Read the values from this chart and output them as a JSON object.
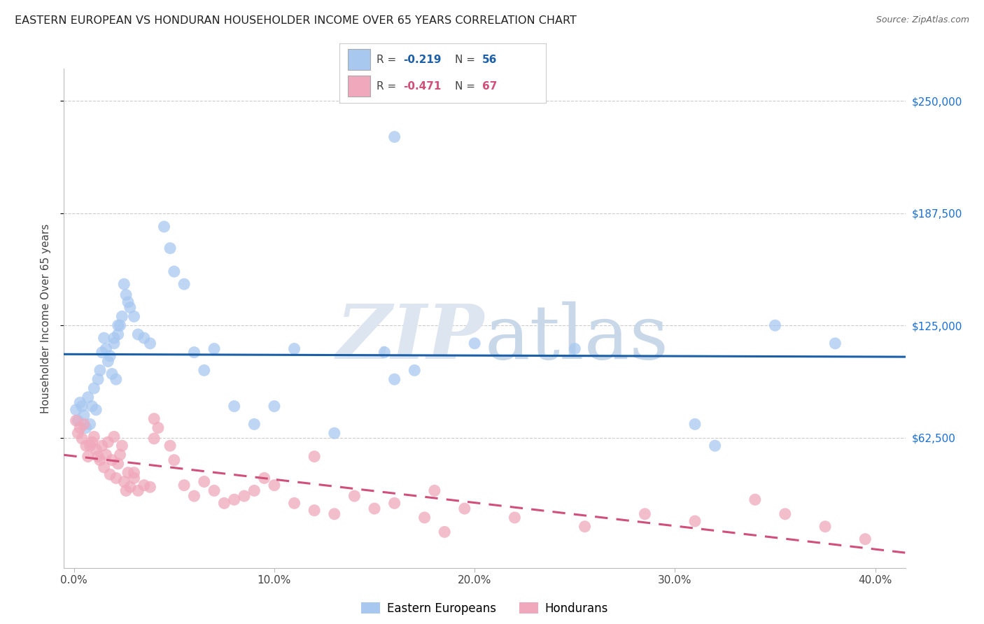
{
  "title": "EASTERN EUROPEAN VS HONDURAN HOUSEHOLDER INCOME OVER 65 YEARS CORRELATION CHART",
  "source": "Source: ZipAtlas.com",
  "ylabel": "Householder Income Over 65 years",
  "ytick_labels": [
    "$62,500",
    "$125,000",
    "$187,500",
    "$250,000"
  ],
  "ytick_vals": [
    62500,
    125000,
    187500,
    250000
  ],
  "xtick_labels": [
    "0.0%",
    "10.0%",
    "20.0%",
    "30.0%",
    "40.0%"
  ],
  "xtick_vals": [
    0.0,
    0.1,
    0.2,
    0.3,
    0.4
  ],
  "ylim": [
    -10000,
    268000
  ],
  "xlim": [
    -0.005,
    0.415
  ],
  "legend_R_blue": "-0.219",
  "legend_N_blue": "56",
  "legend_R_pink": "-0.471",
  "legend_N_pink": "67",
  "blue_color": "#a8c8f0",
  "pink_color": "#f0a8bc",
  "blue_line_color": "#1a5fa8",
  "pink_line_color": "#d0507a",
  "blue_x": [
    0.001,
    0.002,
    0.003,
    0.004,
    0.005,
    0.006,
    0.007,
    0.008,
    0.009,
    0.01,
    0.011,
    0.012,
    0.013,
    0.014,
    0.015,
    0.016,
    0.017,
    0.018,
    0.019,
    0.02,
    0.021,
    0.022,
    0.023,
    0.024,
    0.025,
    0.026,
    0.027,
    0.028,
    0.03,
    0.032,
    0.035,
    0.038,
    0.05,
    0.055,
    0.06,
    0.065,
    0.07,
    0.08,
    0.09,
    0.1,
    0.11,
    0.13,
    0.155,
    0.16,
    0.17,
    0.2,
    0.25,
    0.31,
    0.32,
    0.35,
    0.38,
    0.16,
    0.045,
    0.048,
    0.022,
    0.02
  ],
  "blue_y": [
    78000,
    72000,
    82000,
    80000,
    75000,
    68000,
    85000,
    70000,
    80000,
    90000,
    78000,
    95000,
    100000,
    110000,
    118000,
    112000,
    105000,
    108000,
    98000,
    115000,
    95000,
    120000,
    125000,
    130000,
    148000,
    142000,
    138000,
    135000,
    130000,
    120000,
    118000,
    115000,
    155000,
    148000,
    110000,
    100000,
    112000,
    80000,
    70000,
    80000,
    112000,
    65000,
    110000,
    230000,
    100000,
    115000,
    112000,
    70000,
    58000,
    125000,
    115000,
    95000,
    180000,
    168000,
    125000,
    118000
  ],
  "pink_x": [
    0.001,
    0.002,
    0.003,
    0.004,
    0.005,
    0.006,
    0.007,
    0.008,
    0.009,
    0.01,
    0.011,
    0.012,
    0.013,
    0.014,
    0.015,
    0.016,
    0.017,
    0.018,
    0.019,
    0.02,
    0.021,
    0.022,
    0.023,
    0.024,
    0.025,
    0.026,
    0.027,
    0.028,
    0.03,
    0.032,
    0.035,
    0.038,
    0.04,
    0.042,
    0.048,
    0.05,
    0.055,
    0.06,
    0.065,
    0.07,
    0.075,
    0.08,
    0.085,
    0.09,
    0.095,
    0.1,
    0.11,
    0.12,
    0.13,
    0.14,
    0.15,
    0.16,
    0.175,
    0.185,
    0.195,
    0.22,
    0.255,
    0.285,
    0.31,
    0.34,
    0.355,
    0.375,
    0.395,
    0.18,
    0.12,
    0.04,
    0.03
  ],
  "pink_y": [
    72000,
    65000,
    68000,
    62000,
    70000,
    58000,
    52000,
    58000,
    60000,
    63000,
    56000,
    52000,
    50000,
    58000,
    46000,
    53000,
    60000,
    42000,
    50000,
    63000,
    40000,
    48000,
    53000,
    58000,
    38000,
    33000,
    43000,
    35000,
    40000,
    33000,
    36000,
    35000,
    73000,
    68000,
    58000,
    50000,
    36000,
    30000,
    38000,
    33000,
    26000,
    28000,
    30000,
    33000,
    40000,
    36000,
    26000,
    22000,
    20000,
    30000,
    23000,
    26000,
    18000,
    10000,
    23000,
    18000,
    13000,
    20000,
    16000,
    28000,
    20000,
    13000,
    6000,
    33000,
    52000,
    62000,
    43000
  ]
}
